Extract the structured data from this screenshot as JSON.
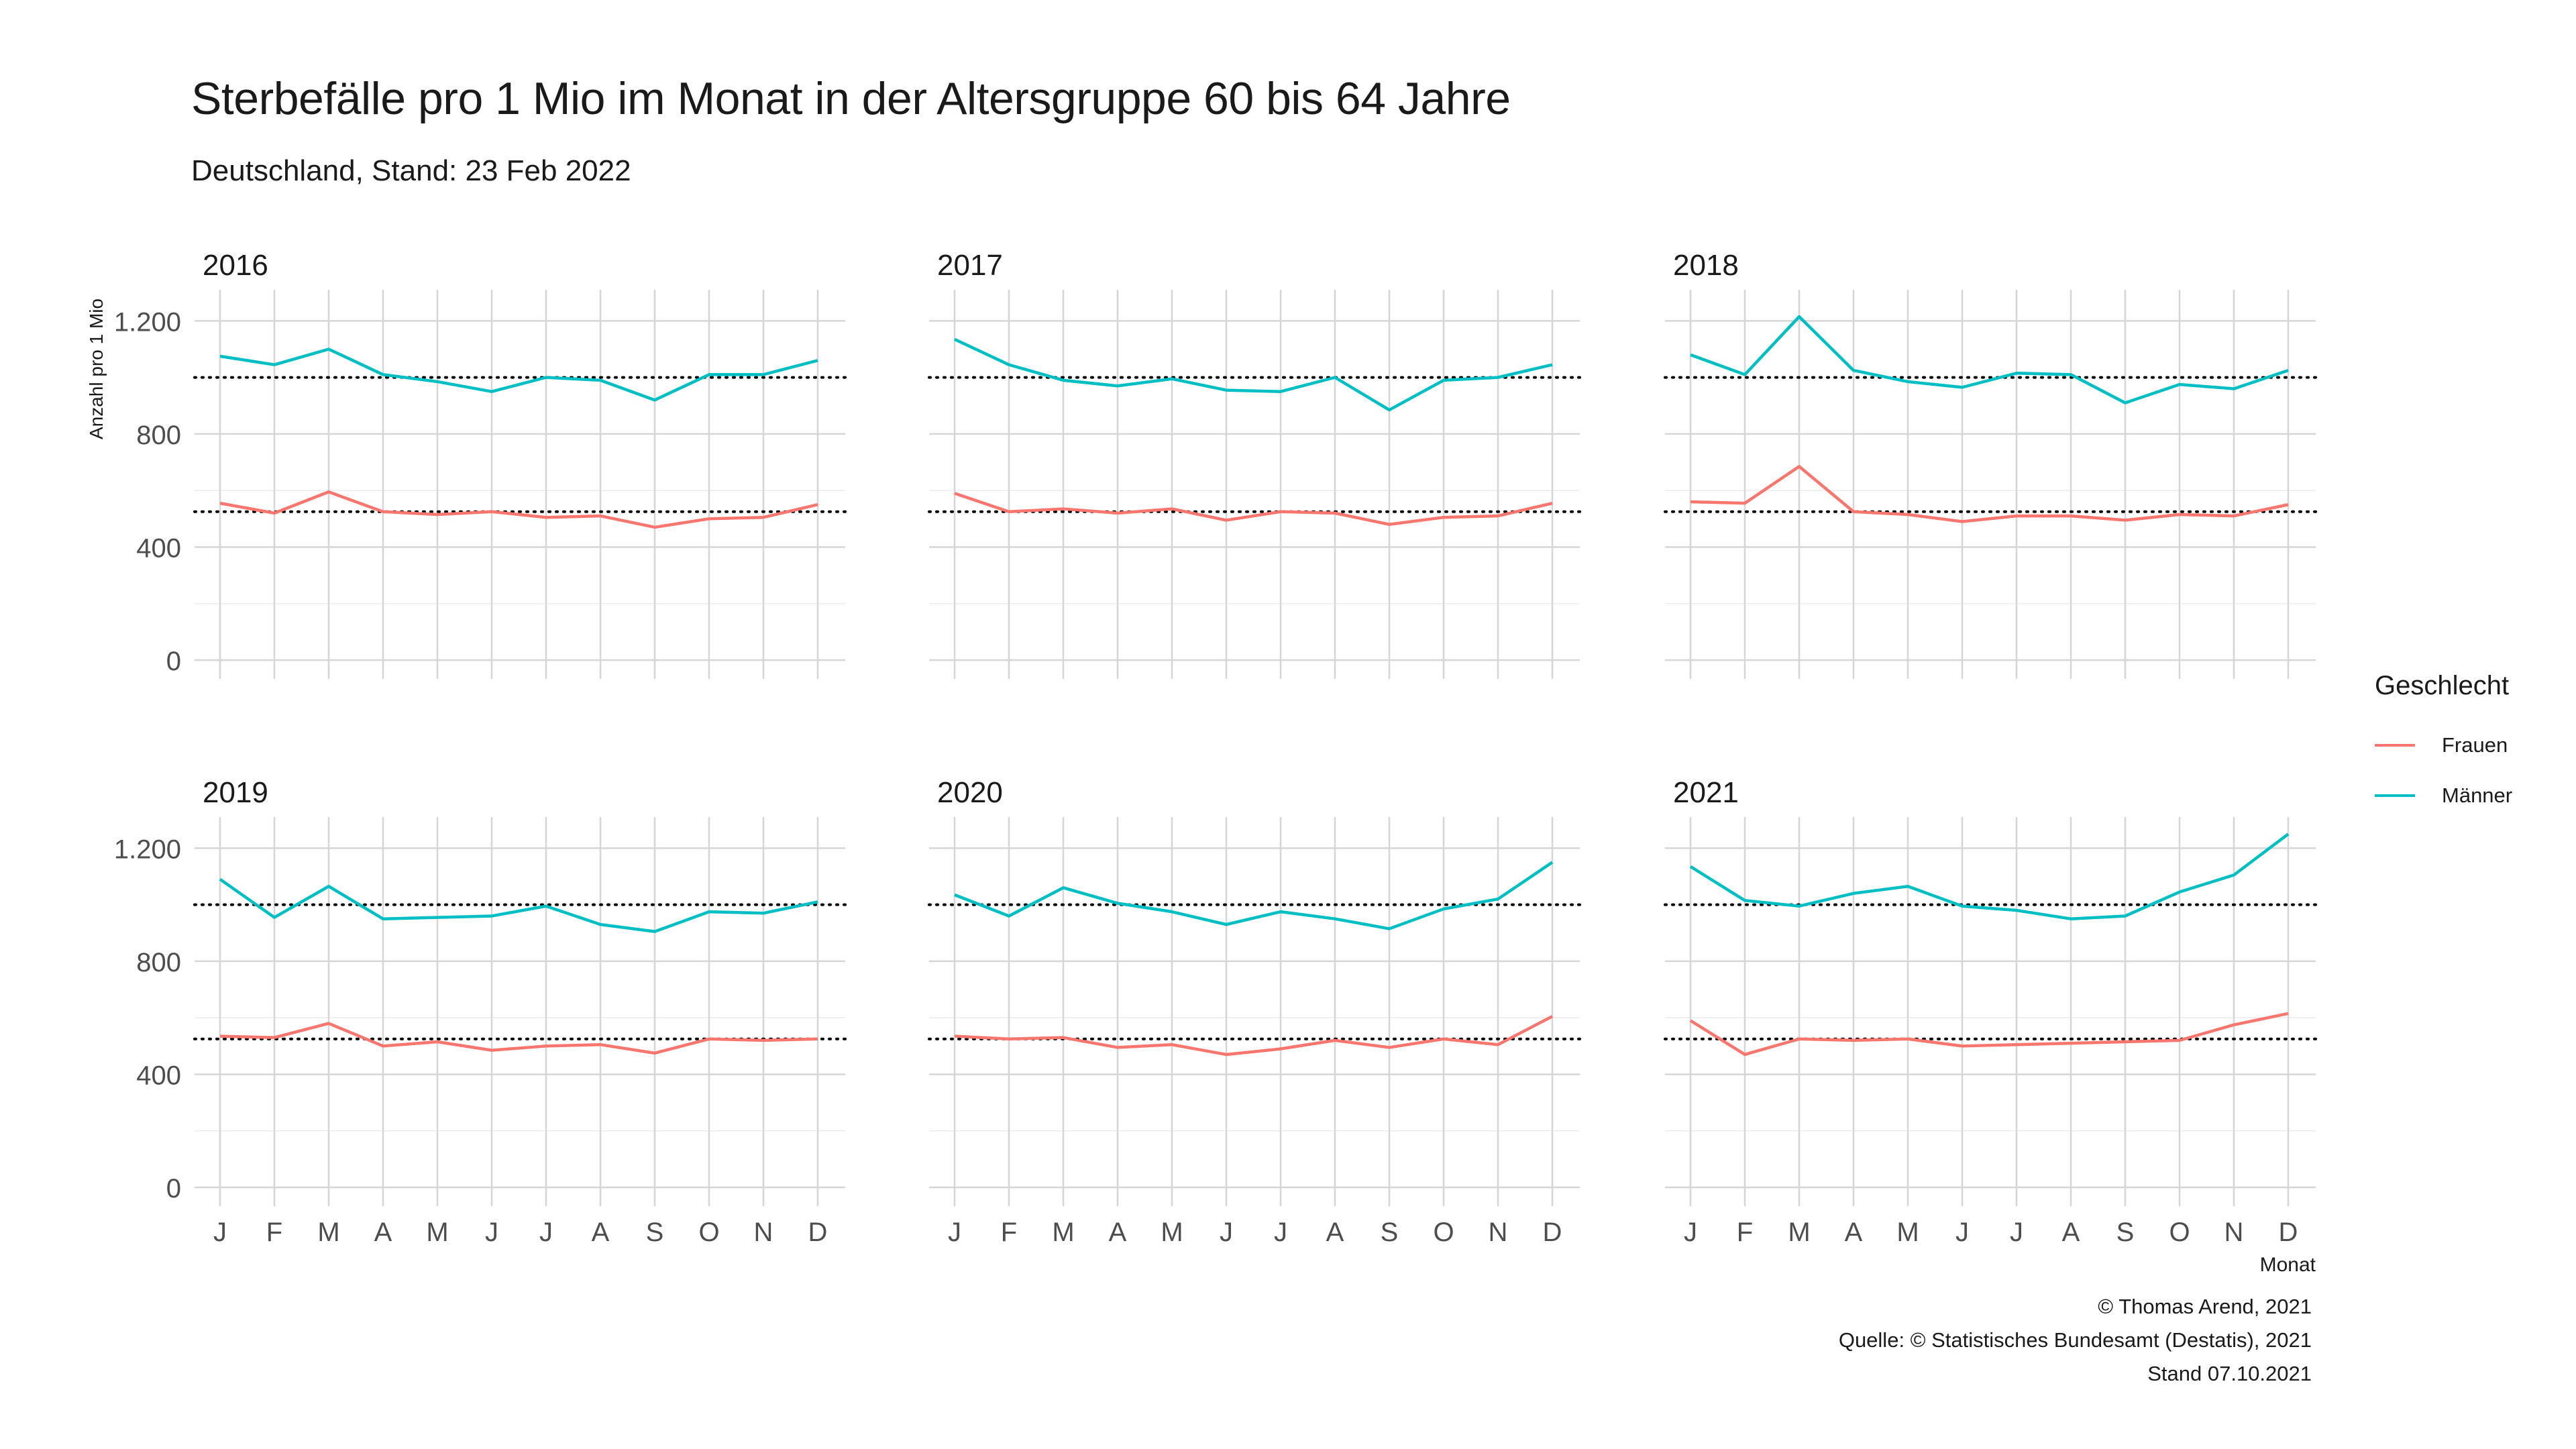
{
  "chart_data": {
    "type": "line",
    "title": "Sterbefälle pro 1 Mio im Monat in der Altersgruppe 60 bis 64 Jahre",
    "subtitle": "Deutschland, Stand: 23 Feb 2022",
    "xlabel": "Monat",
    "ylabel": "Anzahl pro 1 Mio",
    "ylim": [
      0,
      1310
    ],
    "y_ticks": [
      0,
      400,
      800,
      1200
    ],
    "y_tick_labels": [
      "0",
      "400",
      "800",
      "1.200"
    ],
    "x_tick_labels": [
      "J",
      "F",
      "M",
      "A",
      "M",
      "J",
      "J",
      "A",
      "S",
      "O",
      "N",
      "D"
    ],
    "grid": true,
    "legend_title": "Geschlecht",
    "legend_position": "right",
    "reference_lines": {
      "Frauen": 525,
      "Männer": 1000
    },
    "series_colors": {
      "Frauen": "#F8766D",
      "Männer": "#00BFC4"
    },
    "panels": [
      {
        "year": "2016",
        "series": [
          {
            "name": "Frauen",
            "values": [
              555,
              520,
              595,
              525,
              515,
              525,
              505,
              510,
              470,
              500,
              505,
              550
            ]
          },
          {
            "name": "Männer",
            "values": [
              1075,
              1045,
              1100,
              1010,
              985,
              950,
              1000,
              990,
              920,
              1010,
              1010,
              1060
            ]
          }
        ]
      },
      {
        "year": "2017",
        "series": [
          {
            "name": "Frauen",
            "values": [
              590,
              525,
              535,
              520,
              535,
              495,
              525,
              520,
              480,
              505,
              510,
              555
            ]
          },
          {
            "name": "Männer",
            "values": [
              1135,
              1045,
              990,
              970,
              995,
              955,
              950,
              1000,
              885,
              990,
              1000,
              1045
            ]
          }
        ]
      },
      {
        "year": "2018",
        "series": [
          {
            "name": "Frauen",
            "values": [
              560,
              555,
              685,
              525,
              515,
              490,
              510,
              510,
              495,
              515,
              510,
              550
            ]
          },
          {
            "name": "Männer",
            "values": [
              1080,
              1010,
              1215,
              1025,
              985,
              965,
              1015,
              1010,
              910,
              975,
              960,
              1025
            ]
          }
        ]
      },
      {
        "year": "2019",
        "series": [
          {
            "name": "Frauen",
            "values": [
              535,
              530,
              580,
              500,
              515,
              485,
              500,
              505,
              475,
              525,
              520,
              525
            ]
          },
          {
            "name": "Männer",
            "values": [
              1090,
              955,
              1065,
              950,
              955,
              960,
              995,
              930,
              905,
              975,
              970,
              1010
            ]
          }
        ]
      },
      {
        "year": "2020",
        "series": [
          {
            "name": "Frauen",
            "values": [
              535,
              525,
              530,
              495,
              505,
              470,
              490,
              520,
              495,
              525,
              505,
              605
            ]
          },
          {
            "name": "Männer",
            "values": [
              1035,
              960,
              1060,
              1005,
              975,
              930,
              975,
              950,
              915,
              985,
              1020,
              1150
            ]
          }
        ]
      },
      {
        "year": "2021",
        "series": [
          {
            "name": "Frauen",
            "values": [
              590,
              470,
              525,
              520,
              525,
              500,
              505,
              510,
              515,
              520,
              575,
              615
            ]
          },
          {
            "name": "Männer",
            "values": [
              1135,
              1015,
              995,
              1040,
              1065,
              995,
              980,
              950,
              960,
              1045,
              1105,
              1250
            ]
          }
        ]
      }
    ]
  },
  "captions": {
    "line1": "© Thomas Arend, 2021",
    "line2": "Quelle: © Statistisches Bundesamt (Destatis), 2021",
    "line3": "Stand 07.10.2021"
  },
  "legend": {
    "title": "Geschlecht",
    "items": [
      {
        "label": "Frauen",
        "color": "#F8766D"
      },
      {
        "label": "Männer",
        "color": "#00BFC4"
      }
    ]
  }
}
